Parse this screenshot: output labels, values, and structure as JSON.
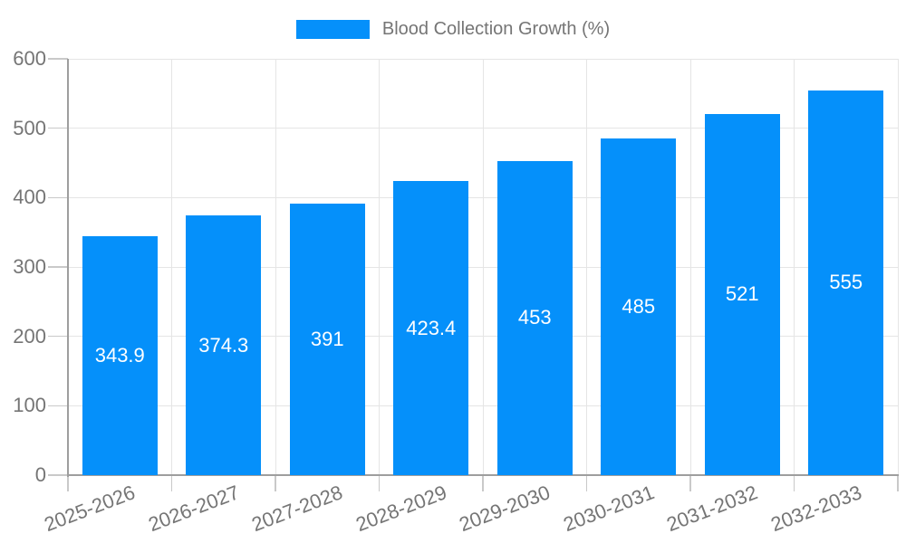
{
  "chart_data": {
    "type": "bar",
    "title": "Blood Collection Growth (%)",
    "categories": [
      "2025-2026",
      "2026-2027",
      "2027-2028",
      "2028-2029",
      "2029-2030",
      "2030-2031",
      "2031-2032",
      "2032-2033"
    ],
    "series": [
      {
        "name": "Blood Collection Growth (%)",
        "values": [
          343.9,
          374.3,
          391,
          423.4,
          453,
          485,
          521,
          555
        ],
        "color": "#0590fa"
      }
    ],
    "value_labels": [
      "343.9",
      "374.3",
      "391",
      "423.4",
      "453",
      "485",
      "521",
      "555"
    ],
    "xlabel": "",
    "ylabel": "",
    "ylim": [
      0,
      600
    ],
    "yticks": [
      0,
      100,
      200,
      300,
      400,
      500,
      600
    ],
    "grid": true,
    "legend_position": "top",
    "colors": {
      "bar": "#0590fa",
      "value_label": "#ffffff",
      "axis_line": "#9e9e9e",
      "gridline": "#e5e5e5",
      "tick": "#c9c9c9",
      "axis_text": "#757575",
      "background": "#ffffff"
    }
  }
}
